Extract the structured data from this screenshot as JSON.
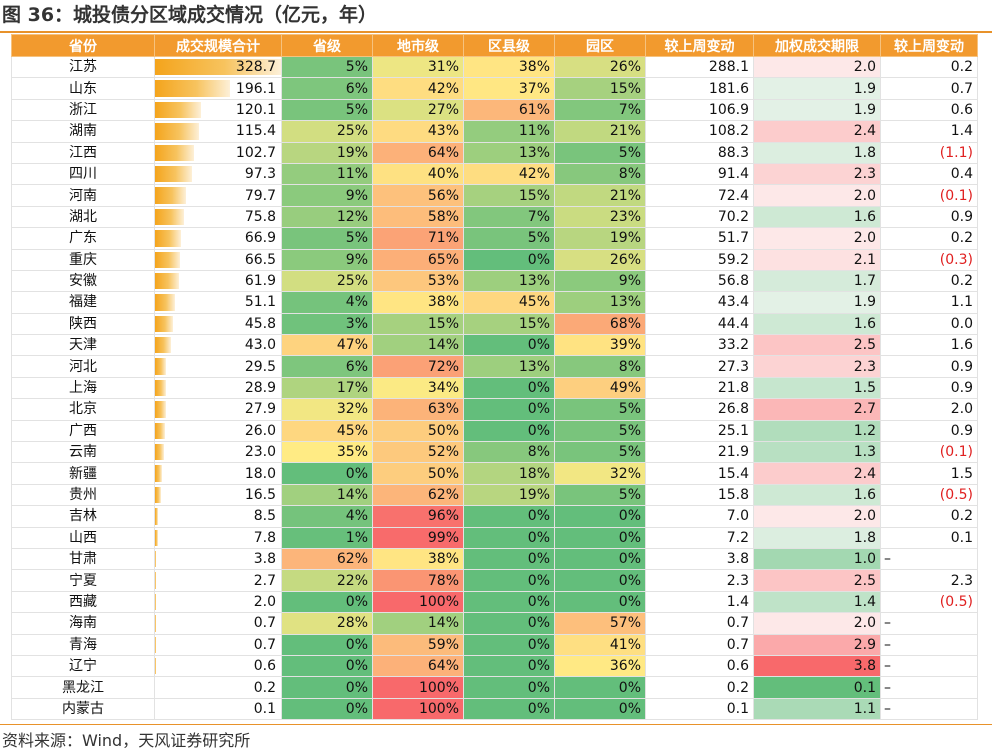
{
  "title": "图 36：城投债分区域成交情况（亿元，年）",
  "source": "资料来源：Wind，天风证券研究所",
  "headers": [
    "省份",
    "成交规模合计",
    "省级",
    "地市级",
    "区县级",
    "园区",
    "较上周变动",
    "加权成交期限",
    "较上周变动"
  ],
  "chart_data": {
    "type": "table",
    "columns": [
      "省份",
      "成交规模合计",
      "省级",
      "地市级",
      "区县级",
      "园区",
      "较上周变动",
      "加权成交期限",
      "较上周变动"
    ],
    "rows": [
      [
        "江苏",
        "328.7",
        "5%",
        "31%",
        "38%",
        "26%",
        "288.1",
        "2.0",
        "0.2"
      ],
      [
        "山东",
        "196.1",
        "6%",
        "42%",
        "37%",
        "15%",
        "181.6",
        "1.9",
        "0.7"
      ],
      [
        "浙江",
        "120.1",
        "5%",
        "27%",
        "61%",
        "7%",
        "106.9",
        "1.9",
        "0.6"
      ],
      [
        "湖南",
        "115.4",
        "25%",
        "43%",
        "11%",
        "21%",
        "108.2",
        "2.4",
        "1.4"
      ],
      [
        "江西",
        "102.7",
        "19%",
        "64%",
        "13%",
        "5%",
        "88.3",
        "1.8",
        "(1.1)"
      ],
      [
        "四川",
        "97.3",
        "11%",
        "40%",
        "42%",
        "8%",
        "91.4",
        "2.3",
        "0.4"
      ],
      [
        "河南",
        "79.7",
        "9%",
        "56%",
        "15%",
        "21%",
        "72.4",
        "2.0",
        "(0.1)"
      ],
      [
        "湖北",
        "75.8",
        "12%",
        "58%",
        "7%",
        "23%",
        "70.2",
        "1.6",
        "0.9"
      ],
      [
        "广东",
        "66.9",
        "5%",
        "71%",
        "5%",
        "19%",
        "51.7",
        "2.0",
        "0.2"
      ],
      [
        "重庆",
        "66.5",
        "9%",
        "65%",
        "0%",
        "26%",
        "59.2",
        "2.1",
        "(0.3)"
      ],
      [
        "安徽",
        "61.9",
        "25%",
        "53%",
        "13%",
        "9%",
        "56.8",
        "1.7",
        "0.2"
      ],
      [
        "福建",
        "51.1",
        "4%",
        "38%",
        "45%",
        "13%",
        "43.4",
        "1.9",
        "1.1"
      ],
      [
        "陕西",
        "45.8",
        "3%",
        "15%",
        "15%",
        "68%",
        "44.4",
        "1.6",
        "0.0"
      ],
      [
        "天津",
        "43.0",
        "47%",
        "14%",
        "0%",
        "39%",
        "33.2",
        "2.5",
        "1.6"
      ],
      [
        "河北",
        "29.5",
        "6%",
        "72%",
        "13%",
        "8%",
        "27.3",
        "2.3",
        "0.9"
      ],
      [
        "上海",
        "28.9",
        "17%",
        "34%",
        "0%",
        "49%",
        "21.8",
        "1.5",
        "0.9"
      ],
      [
        "北京",
        "27.9",
        "32%",
        "63%",
        "0%",
        "5%",
        "26.8",
        "2.7",
        "2.0"
      ],
      [
        "广西",
        "26.0",
        "45%",
        "50%",
        "0%",
        "5%",
        "25.1",
        "1.2",
        "0.9"
      ],
      [
        "云南",
        "23.0",
        "35%",
        "52%",
        "8%",
        "5%",
        "21.9",
        "1.3",
        "(0.1)"
      ],
      [
        "新疆",
        "18.0",
        "0%",
        "50%",
        "18%",
        "32%",
        "15.4",
        "2.4",
        "1.5"
      ],
      [
        "贵州",
        "16.5",
        "14%",
        "62%",
        "19%",
        "5%",
        "15.8",
        "1.6",
        "(0.5)"
      ],
      [
        "吉林",
        "8.5",
        "4%",
        "96%",
        "0%",
        "0%",
        "7.0",
        "2.0",
        "0.2"
      ],
      [
        "山西",
        "7.8",
        "1%",
        "99%",
        "0%",
        "0%",
        "7.2",
        "1.8",
        "0.1"
      ],
      [
        "甘肃",
        "3.8",
        "62%",
        "38%",
        "0%",
        "0%",
        "3.8",
        "1.0",
        "–"
      ],
      [
        "宁夏",
        "2.7",
        "22%",
        "78%",
        "0%",
        "0%",
        "2.3",
        "2.5",
        "2.3"
      ],
      [
        "西藏",
        "2.0",
        "0%",
        "100%",
        "0%",
        "0%",
        "1.4",
        "1.4",
        "(0.5)"
      ],
      [
        "海南",
        "0.7",
        "28%",
        "14%",
        "0%",
        "57%",
        "0.7",
        "2.0",
        "–"
      ],
      [
        "青海",
        "0.7",
        "0%",
        "59%",
        "0%",
        "41%",
        "0.7",
        "2.9",
        "–"
      ],
      [
        "辽宁",
        "0.6",
        "0%",
        "64%",
        "0%",
        "36%",
        "0.6",
        "3.8",
        "–"
      ],
      [
        "黑龙江",
        "0.2",
        "0%",
        "100%",
        "0%",
        "0%",
        "0.2",
        "0.1",
        "–"
      ],
      [
        "内蒙古",
        "0.1",
        "0%",
        "100%",
        "0%",
        "0%",
        "0.1",
        "1.1",
        "–"
      ]
    ],
    "bar_column_max": 328.7,
    "colors": {
      "header": "#f29a2e",
      "bar": "#f4a41c",
      "scale_low": "#63be7b",
      "scale_mid": "#ffeb84",
      "scale_high": "#f8696b",
      "term_low": "#ffffff",
      "term_high": "#f8696b",
      "negative_text": "#e02020"
    }
  }
}
